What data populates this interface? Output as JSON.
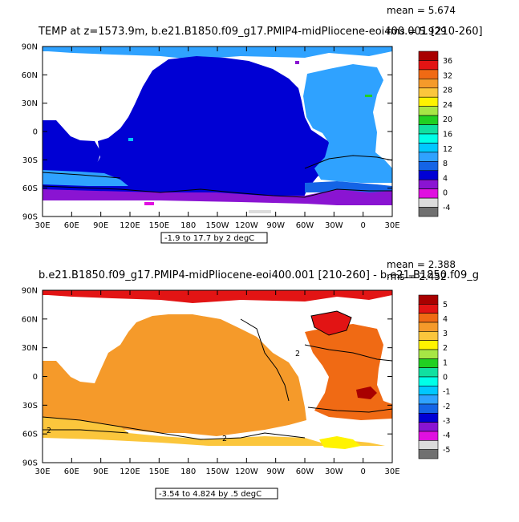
{
  "panel1": {
    "title": "TEMP at z=1573.9m, b.e21.B1850.f09_g17.PMIP4-midPliocene-eoi400.001 [210-260]",
    "mean": "mean = 5.674",
    "rms": "rms = 5.929",
    "contour_info": "-1.9 to 17.7 by 2 degC",
    "lat_ticks": [
      "90N",
      "60N",
      "30N",
      "0",
      "30S",
      "60S",
      "90S"
    ],
    "lon_ticks": [
      "30E",
      "60E",
      "90E",
      "120E",
      "150E",
      "180",
      "150W",
      "120W",
      "90W",
      "60W",
      "30W",
      "0",
      "30E"
    ],
    "colorbar": {
      "labels": [
        "36",
        "32",
        "28",
        "24",
        "20",
        "16",
        "12",
        "8",
        "4",
        "0",
        "-4"
      ],
      "colors": [
        "#a80000",
        "#e21414",
        "#f06a14",
        "#f59a2a",
        "#fbc63c",
        "#fff300",
        "#a7e645",
        "#21d021",
        "#10e0a0",
        "#00ffe8",
        "#00c8ff",
        "#2fa2ff",
        "#1464e6",
        "#0000d4",
        "#8a14d2",
        "#e010e0",
        "#dcdcdc",
        "#707070"
      ]
    }
  },
  "panel2": {
    "title": "b.e21.B1850.f09_g17.PMIP4-midPliocene-eoi400.001 [210-260] - b.e21.B1850.f09_g",
    "mean": "mean = 2.388",
    "rms": "rms = 2.452",
    "contour_info": "-3.54 to 4.824 by .5 degC",
    "lat_ticks": [
      "90N",
      "60N",
      "30N",
      "0",
      "30S",
      "60S",
      "90S"
    ],
    "lon_ticks": [
      "30E",
      "60E",
      "90E",
      "120E",
      "150E",
      "180",
      "150W",
      "120W",
      "90W",
      "60W",
      "30W",
      "0",
      "30E"
    ],
    "contour_labels": [
      "2",
      "2",
      "2"
    ],
    "colorbar": {
      "labels": [
        "5",
        "4",
        "3",
        "2",
        "1",
        "0",
        "-1",
        "-2",
        "-3",
        "-4",
        "-5"
      ],
      "colors": [
        "#a80000",
        "#e21414",
        "#f06a14",
        "#f59a2a",
        "#fbc63c",
        "#fff300",
        "#a7e645",
        "#21d021",
        "#10e0a0",
        "#00ffe8",
        "#00c8ff",
        "#2fa2ff",
        "#1464e6",
        "#0000d4",
        "#8a14d2",
        "#e010e0",
        "#dcdcdc",
        "#707070"
      ]
    }
  }
}
